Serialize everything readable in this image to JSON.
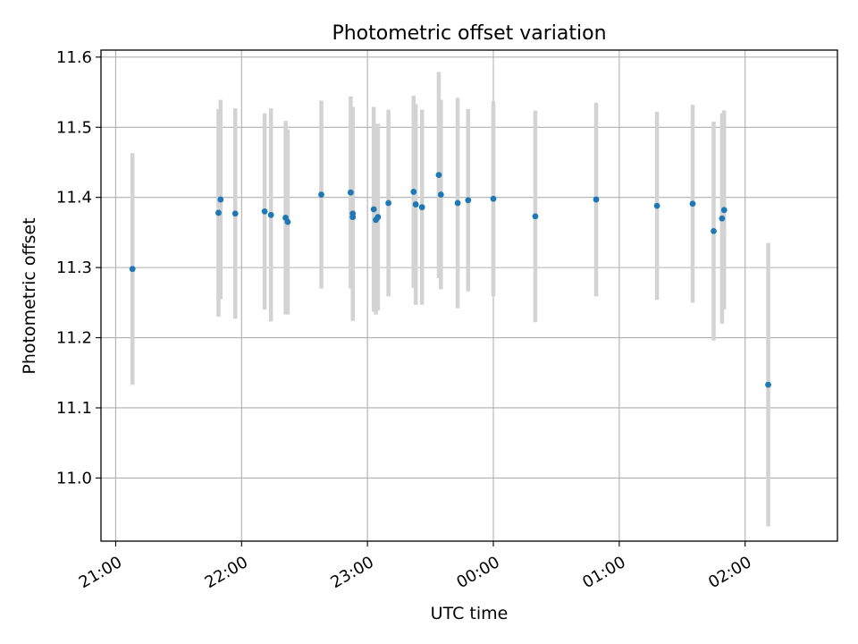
{
  "chart_data": {
    "type": "scatter",
    "title": "Photometric offset variation",
    "xlabel": "UTC time",
    "ylabel": "Photometric offset",
    "x_ticks": [
      "21:00",
      "22:00",
      "23:00",
      "00:00",
      "01:00",
      "02:00"
    ],
    "y_ticks": [
      "11.0",
      "11.1",
      "11.2",
      "11.3",
      "11.4",
      "11.5",
      "11.6"
    ],
    "ylim": [
      10.91,
      11.61
    ],
    "xlim": [
      "20:53",
      "02:44"
    ],
    "grid": true,
    "x_tick_rotation_deg": 30,
    "point_color": "#1f77b4",
    "errorbar_color": "#d3d3d3",
    "points": [
      {
        "x": "21:08",
        "y": 11.298,
        "err": 0.165
      },
      {
        "x": "21:49",
        "y": 11.378,
        "err": 0.148
      },
      {
        "x": "21:50",
        "y": 11.397,
        "err": 0.142
      },
      {
        "x": "21:57",
        "y": 11.377,
        "err": 0.15
      },
      {
        "x": "22:11",
        "y": 11.38,
        "err": 0.14
      },
      {
        "x": "22:14",
        "y": 11.375,
        "err": 0.152
      },
      {
        "x": "22:21",
        "y": 11.371,
        "err": 0.138
      },
      {
        "x": "22:22",
        "y": 11.365,
        "err": 0.132
      },
      {
        "x": "22:38",
        "y": 11.404,
        "err": 0.134
      },
      {
        "x": "22:52",
        "y": 11.407,
        "err": 0.137
      },
      {
        "x": "22:53",
        "y": 11.377,
        "err": 0.152
      },
      {
        "x": "22:53",
        "y": 11.372,
        "err": 0.148
      },
      {
        "x": "23:03",
        "y": 11.383,
        "err": 0.146
      },
      {
        "x": "23:04",
        "y": 11.368,
        "err": 0.135
      },
      {
        "x": "23:05",
        "y": 11.372,
        "err": 0.133
      },
      {
        "x": "23:10",
        "y": 11.392,
        "err": 0.133
      },
      {
        "x": "23:22",
        "y": 11.408,
        "err": 0.137
      },
      {
        "x": "23:23",
        "y": 11.39,
        "err": 0.143
      },
      {
        "x": "23:26",
        "y": 11.386,
        "err": 0.139
      },
      {
        "x": "23:34",
        "y": 11.432,
        "err": 0.147
      },
      {
        "x": "23:35",
        "y": 11.404,
        "err": 0.135
      },
      {
        "x": "23:43",
        "y": 11.392,
        "err": 0.15
      },
      {
        "x": "23:48",
        "y": 11.396,
        "err": 0.13
      },
      {
        "x": "00:00",
        "y": 11.398,
        "err": 0.139
      },
      {
        "x": "00:20",
        "y": 11.373,
        "err": 0.151
      },
      {
        "x": "00:49",
        "y": 11.397,
        "err": 0.138
      },
      {
        "x": "01:18",
        "y": 11.388,
        "err": 0.134
      },
      {
        "x": "01:35",
        "y": 11.391,
        "err": 0.141
      },
      {
        "x": "01:45",
        "y": 11.352,
        "err": 0.156
      },
      {
        "x": "01:49",
        "y": 11.37,
        "err": 0.15
      },
      {
        "x": "01:50",
        "y": 11.382,
        "err": 0.142
      },
      {
        "x": "02:11",
        "y": 11.133,
        "err": 0.202
      }
    ]
  }
}
